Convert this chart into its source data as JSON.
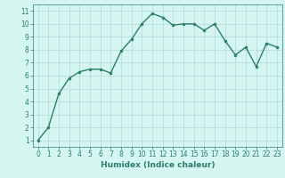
{
  "x": [
    0,
    1,
    2,
    3,
    4,
    5,
    6,
    7,
    8,
    9,
    10,
    11,
    12,
    13,
    14,
    15,
    16,
    17,
    18,
    19,
    20,
    21,
    22,
    23
  ],
  "y": [
    1,
    2,
    4.6,
    5.8,
    6.3,
    6.5,
    6.5,
    6.2,
    7.9,
    8.8,
    10.0,
    10.8,
    10.5,
    9.9,
    10.0,
    10.0,
    9.5,
    10.0,
    8.7,
    7.6,
    8.2,
    6.7,
    8.5,
    8.2
  ],
  "line_color": "#2d7d6e",
  "marker": "o",
  "marker_size": 2.0,
  "linewidth": 1.0,
  "bg_color": "#d4f5f0",
  "grid_color": "#b8ddd8",
  "xlabel": "Humidex (Indice chaleur)",
  "xlim": [
    -0.5,
    23.5
  ],
  "ylim": [
    0.5,
    11.5
  ],
  "xticks": [
    0,
    1,
    2,
    3,
    4,
    5,
    6,
    7,
    8,
    9,
    10,
    11,
    12,
    13,
    14,
    15,
    16,
    17,
    18,
    19,
    20,
    21,
    22,
    23
  ],
  "yticks": [
    1,
    2,
    3,
    4,
    5,
    6,
    7,
    8,
    9,
    10,
    11
  ],
  "xlabel_fontsize": 6.5,
  "tick_fontsize": 5.5
}
